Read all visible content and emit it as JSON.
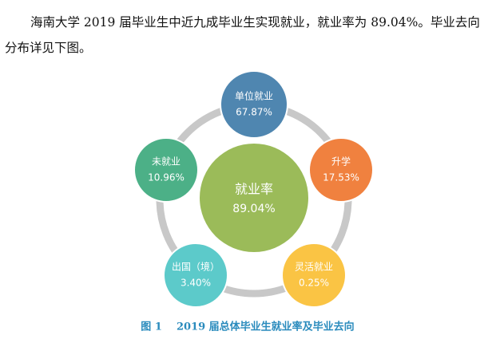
{
  "paragraph": "海南大学 2019 届毕业生中近九成毕业生实现就业，就业率为 89.04%。毕业去向分布详见下图。",
  "diagram": {
    "center": {
      "label": "就业率",
      "value": "89.04%"
    },
    "nodes": [
      {
        "label": "单位就业",
        "value": "67.87%"
      },
      {
        "label": "升学",
        "value": "17.53%"
      },
      {
        "label": "灵活就业",
        "value": "0.25%"
      },
      {
        "label": "出国（境）",
        "value": "3.40%"
      },
      {
        "label": "未就业",
        "value": "10.96%"
      }
    ]
  },
  "caption": "图 1    2019 届总体毕业生就业率及毕业去向"
}
